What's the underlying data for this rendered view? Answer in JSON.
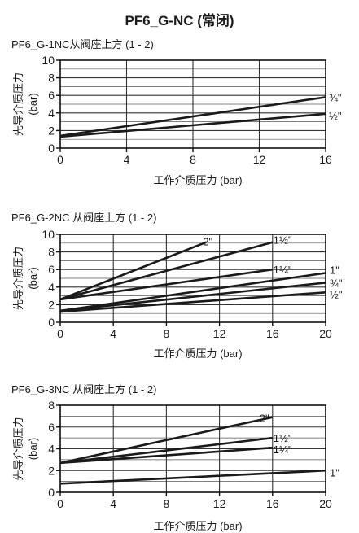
{
  "page": {
    "title": "PF6_G-NC (常闭)"
  },
  "chart_data": [
    {
      "type": "line",
      "title": "PF6_G-1NC从阀座上方 (1 - 2)",
      "xlabel": "工作介质压力 (bar)",
      "ylabel": "先导介质压力",
      "yunit": "(bar)",
      "xlim": [
        0,
        16
      ],
      "ylim": [
        0,
        10
      ],
      "xticks": [
        0,
        4,
        8,
        12,
        16
      ],
      "yticks": [
        0,
        2,
        4,
        6,
        8,
        10
      ],
      "ygrid_minor": [
        1,
        3,
        5,
        7,
        9
      ],
      "grid": true,
      "series": [
        {
          "name": "¾\"",
          "x": [
            0,
            16
          ],
          "y": [
            1.4,
            5.8
          ]
        },
        {
          "name": "½\"",
          "x": [
            0,
            16
          ],
          "y": [
            1.3,
            3.9
          ]
        }
      ]
    },
    {
      "type": "line",
      "title": "PF6_G-2NC 从阀座上方 (1 - 2)",
      "xlabel": "工作介质压力 (bar)",
      "ylabel": "先导介质压力",
      "yunit": "(bar)",
      "xlim": [
        0,
        20
      ],
      "ylim": [
        0,
        10
      ],
      "xticks": [
        0,
        4,
        8,
        12,
        16,
        20
      ],
      "yticks": [
        0,
        2,
        4,
        6,
        8,
        10
      ],
      "ygrid_minor": [
        1,
        3,
        5,
        7,
        9
      ],
      "grid": true,
      "series": [
        {
          "name": "2\"",
          "x": [
            0,
            11
          ],
          "y": [
            2.6,
            9.1
          ]
        },
        {
          "name": "1½\"",
          "x": [
            0,
            16
          ],
          "y": [
            2.6,
            9.1
          ]
        },
        {
          "name": "1¼\"",
          "x": [
            0,
            16
          ],
          "y": [
            2.6,
            6.0
          ]
        },
        {
          "name": "1\"",
          "x": [
            0,
            20
          ],
          "y": [
            1.3,
            5.6
          ]
        },
        {
          "name": "¾\"",
          "x": [
            0,
            20
          ],
          "y": [
            1.3,
            4.5
          ]
        },
        {
          "name": "½\"",
          "x": [
            0,
            20
          ],
          "y": [
            1.2,
            3.4
          ]
        }
      ]
    },
    {
      "type": "line",
      "title": "PF6_G-3NC 从阀座上方 (1 - 2)",
      "xlabel": "工作介质压力 (bar)",
      "ylabel": "先导介质压力",
      "yunit": "(bar)",
      "xlim": [
        0,
        20
      ],
      "ylim": [
        0,
        8
      ],
      "xticks": [
        0,
        4,
        8,
        12,
        16,
        20
      ],
      "yticks": [
        0,
        2,
        4,
        6,
        8
      ],
      "ygrid_minor": [
        1,
        3,
        5,
        7
      ],
      "grid": true,
      "series": [
        {
          "name": "2\"",
          "x": [
            0,
            16
          ],
          "y": [
            2.7,
            6.9
          ]
        },
        {
          "name": "1½\"",
          "x": [
            0,
            16
          ],
          "y": [
            2.7,
            5.0
          ]
        },
        {
          "name": "1¼\"",
          "x": [
            0,
            16
          ],
          "y": [
            2.7,
            4.1
          ]
        },
        {
          "name": "1\"",
          "x": [
            0,
            20
          ],
          "y": [
            0.8,
            2.0
          ]
        }
      ]
    }
  ]
}
